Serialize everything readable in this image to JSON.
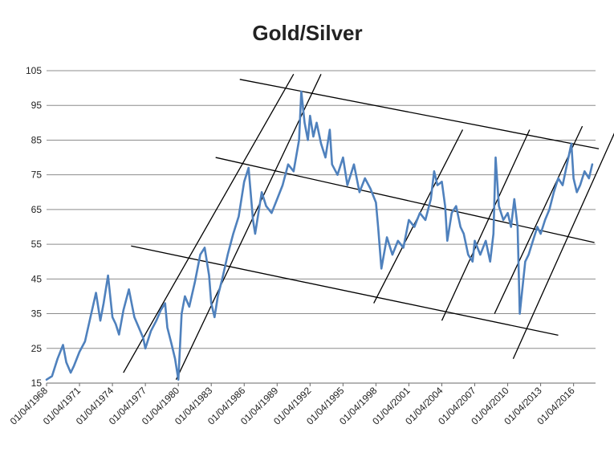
{
  "chart_data": {
    "type": "line",
    "title": "Gold/Silver",
    "xlabel": "",
    "ylabel": "",
    "ylim": [
      15,
      105
    ],
    "yticks": [
      15,
      25,
      35,
      45,
      55,
      65,
      75,
      85,
      95,
      105
    ],
    "ytick_labels": [
      "15",
      "25",
      "35",
      "45",
      "55",
      "65",
      "75",
      "85",
      "95",
      "105"
    ],
    "xlim": [
      1968,
      2018
    ],
    "xticks": [
      1968,
      1971,
      1974,
      1977,
      1980,
      1983,
      1986,
      1989,
      1992,
      1995,
      1998,
      2001,
      2004,
      2007,
      2010,
      2013,
      2016
    ],
    "xtick_labels": [
      "01/04/1968",
      "01/04/1971",
      "01/04/1974",
      "01/04/1977",
      "01/04/1980",
      "01/04/1983",
      "01/04/1986",
      "01/04/1989",
      "01/04/1992",
      "01/04/1995",
      "01/04/1998",
      "01/04/2001",
      "01/04/2004",
      "01/04/2007",
      "01/04/2010",
      "01/04/2013",
      "01/04/2016"
    ],
    "grid": "horizontal",
    "legend": "none",
    "series": [
      {
        "color": "#4f81bd",
        "x": [
          1968.0,
          1968.5,
          1969.0,
          1969.5,
          1969.8,
          1970.2,
          1970.5,
          1971.0,
          1971.5,
          1972.0,
          1972.5,
          1972.9,
          1973.2,
          1973.6,
          1974.0,
          1974.3,
          1974.6,
          1975.0,
          1975.5,
          1976.0,
          1976.4,
          1976.8,
          1977.0,
          1977.5,
          1978.0,
          1978.4,
          1978.8,
          1979.0,
          1979.4,
          1979.7,
          1980.0,
          1980.3,
          1980.6,
          1981.0,
          1981.5,
          1982.0,
          1982.4,
          1982.8,
          1983.0,
          1983.3,
          1983.6,
          1984.0,
          1984.5,
          1985.0,
          1985.5,
          1986.0,
          1986.4,
          1986.8,
          1987.0,
          1987.3,
          1987.6,
          1988.0,
          1988.5,
          1989.0,
          1989.5,
          1990.0,
          1990.5,
          1991.0,
          1991.2,
          1991.5,
          1991.8,
          1992.0,
          1992.3,
          1992.6,
          1993.0,
          1993.4,
          1993.8,
          1994.0,
          1994.5,
          1995.0,
          1995.4,
          1995.8,
          1996.0,
          1996.5,
          1997.0,
          1997.5,
          1998.0,
          1998.2,
          1998.5,
          1999.0,
          1999.5,
          2000.0,
          2000.5,
          2001.0,
          2001.5,
          2002.0,
          2002.5,
          2003.0,
          2003.3,
          2003.6,
          2004.0,
          2004.3,
          2004.5,
          2004.9,
          2005.3,
          2005.7,
          2006.0,
          2006.4,
          2006.8,
          2007.0,
          2007.5,
          2008.0,
          2008.4,
          2008.7,
          2008.9,
          2009.2,
          2009.6,
          2010.0,
          2010.3,
          2010.6,
          2010.9,
          2011.1,
          2011.3,
          2011.6,
          2011.9,
          2012.3,
          2012.7,
          2013.0,
          2013.4,
          2013.8,
          2014.2,
          2014.6,
          2015.0,
          2015.4,
          2015.8,
          2016.0,
          2016.3,
          2016.6,
          2017.0,
          2017.4,
          2017.7
        ],
        "y": [
          16,
          17,
          22,
          26,
          21,
          18,
          20,
          24,
          27,
          34,
          41,
          33,
          38,
          46,
          34,
          32,
          29,
          36,
          42,
          34,
          31,
          28,
          25,
          30,
          33,
          36,
          38,
          31,
          26,
          22,
          16,
          35,
          40,
          37,
          44,
          52,
          54,
          46,
          38,
          34,
          40,
          45,
          52,
          58,
          63,
          73,
          77,
          62,
          58,
          64,
          70,
          66,
          64,
          68,
          72,
          78,
          76,
          85,
          99,
          90,
          85,
          92,
          86,
          90,
          84,
          80,
          88,
          78,
          75,
          80,
          72,
          76,
          78,
          70,
          74,
          71,
          67,
          60,
          48,
          57,
          52,
          56,
          54,
          62,
          60,
          64,
          62,
          68,
          76,
          72,
          73,
          66,
          56,
          64,
          66,
          60,
          58,
          52,
          50,
          56,
          52,
          56,
          50,
          58,
          80,
          66,
          62,
          64,
          60,
          68,
          60,
          35,
          41,
          50,
          52,
          56,
          60,
          58,
          62,
          65,
          70,
          74,
          72,
          78,
          84,
          74,
          70,
          72,
          76,
          74,
          78
        ]
      }
    ],
    "annotations": [
      {
        "type": "trendline",
        "color": "#000000",
        "points": [
          [
            1975.0,
            18.0
          ],
          [
            1990.5,
            104.0
          ]
        ]
      },
      {
        "type": "trendline",
        "color": "#000000",
        "points": [
          [
            1979.8,
            16.0
          ],
          [
            1993.0,
            104.0
          ]
        ]
      },
      {
        "type": "trendline",
        "color": "#000000",
        "points": [
          [
            1997.8,
            38.0
          ],
          [
            2005.9,
            88.0
          ]
        ]
      },
      {
        "type": "trendline",
        "color": "#000000",
        "points": [
          [
            2004.0,
            33.0
          ],
          [
            2012.0,
            88.0
          ]
        ]
      },
      {
        "type": "trendline",
        "color": "#000000",
        "points": [
          [
            2008.8,
            35.0
          ],
          [
            2016.8,
            89.0
          ]
        ]
      },
      {
        "type": "trendline",
        "color": "#000000",
        "points": [
          [
            2010.5,
            22.0
          ],
          [
            2020.0,
            89.0
          ]
        ]
      },
      {
        "type": "trendline",
        "color": "#000000",
        "points": [
          [
            1975.7,
            54.5
          ],
          [
            2014.6,
            28.8
          ]
        ]
      },
      {
        "type": "trendline",
        "color": "#000000",
        "points": [
          [
            1983.4,
            80.0
          ],
          [
            2017.9,
            55.5
          ]
        ]
      },
      {
        "type": "trendline",
        "color": "#000000",
        "points": [
          [
            1985.6,
            102.5
          ],
          [
            2018.3,
            82.5
          ]
        ]
      }
    ]
  }
}
